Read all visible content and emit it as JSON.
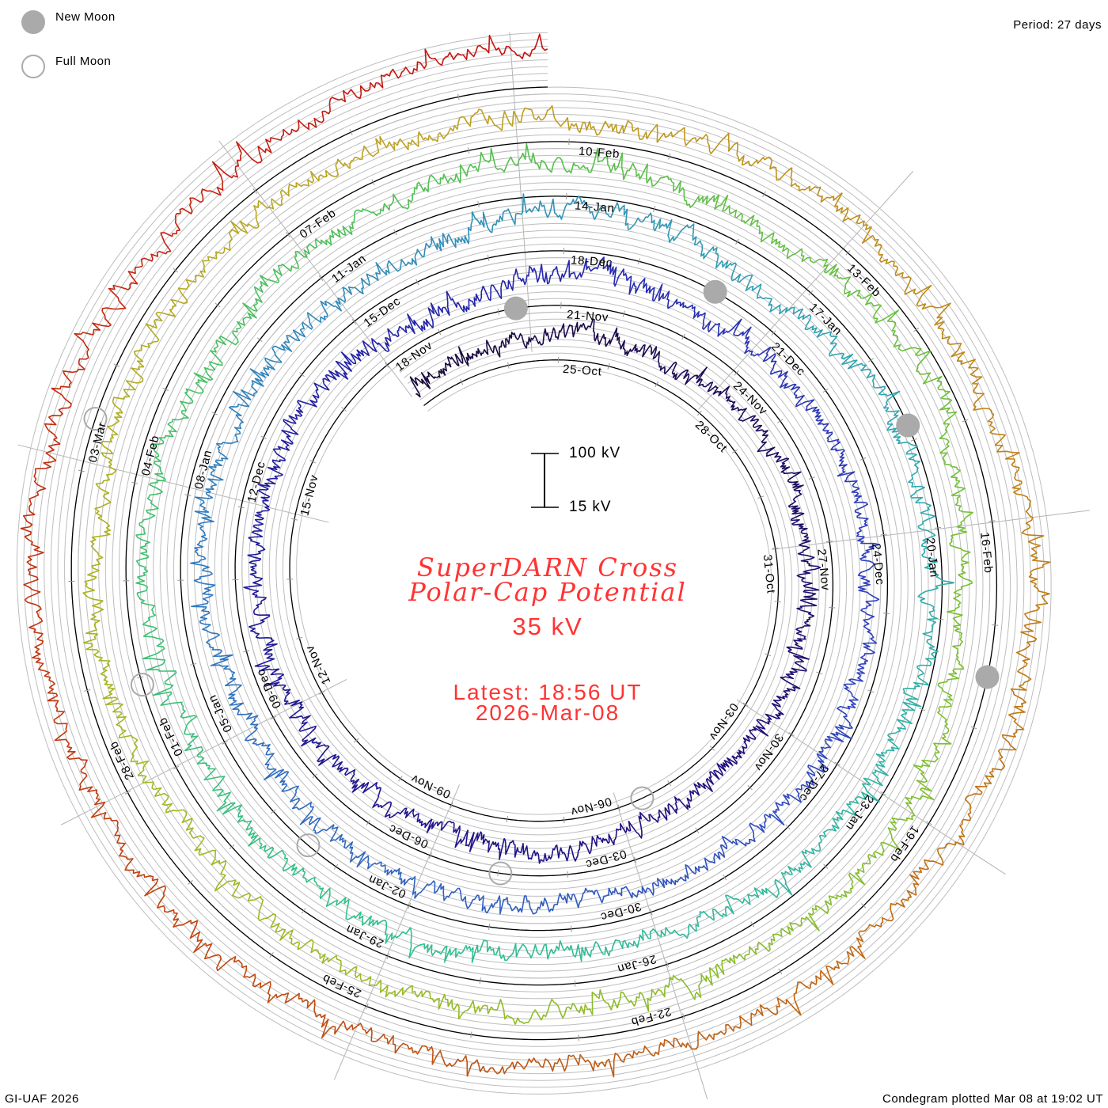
{
  "legend": {
    "new_moon": "New Moon",
    "full_moon": "Full Moon",
    "moon_color": "#aaaaaa"
  },
  "header": {
    "period": "Period: 27 days"
  },
  "footer": {
    "credit": "GI-UAF 2026",
    "plotted": "Condegram plotted Mar 08 at 19:02 UT"
  },
  "center": {
    "title_line1": "SuperDARN Cross",
    "title_line2": "Polar-Cap Potential",
    "current_value": "35 kV",
    "latest_time": "Latest: 18:56 UT",
    "latest_date": "2026-Mar-08",
    "text_color": "#ff3333"
  },
  "scale": {
    "top_label": "100 kV",
    "bottom_label": "15 kV",
    "top_kv": 100,
    "bottom_kv": 15
  },
  "chart_data": {
    "type": "line",
    "subtype": "spiral-condegram",
    "title": "SuperDARN Cross Polar-Cap Potential",
    "period_days": 27,
    "units": "kV",
    "baseline_kv": 15,
    "start": "2025-10-22T02:24Z",
    "end": "2026-03-08T18:56Z",
    "daily_first_date": "2025-10-22",
    "daily_values_kv": [
      40,
      45,
      55,
      65,
      55,
      48,
      62,
      66,
      64,
      65,
      60,
      58,
      52,
      52,
      48,
      60,
      66,
      54,
      58,
      60,
      65,
      66,
      70,
      70,
      70,
      66,
      62,
      42,
      40,
      58,
      77,
      60,
      58,
      60,
      70,
      72,
      70,
      76,
      77,
      74,
      65,
      70,
      52,
      58,
      64,
      65,
      60,
      58,
      52,
      64,
      65,
      66,
      64,
      60,
      58,
      52,
      77,
      84,
      72,
      52,
      65,
      84,
      84,
      82,
      84,
      80,
      72,
      70,
      58,
      52,
      46,
      64,
      58,
      58,
      58,
      58,
      65,
      71,
      71,
      52,
      58,
      58,
      58,
      71,
      71,
      52,
      46,
      65,
      82,
      52,
      52,
      46,
      58,
      58,
      58,
      52,
      52,
      58,
      58,
      58,
      52,
      52,
      64,
      71,
      52,
      71,
      70,
      65,
      64,
      52,
      58,
      40,
      58,
      64,
      52,
      52,
      58,
      77,
      71,
      64,
      52,
      58,
      58,
      58,
      58,
      58,
      58,
      64,
      64,
      71,
      77,
      77,
      71,
      64,
      58,
      58,
      71,
      77
    ],
    "date_labels_first": "2025-10-25",
    "date_label_step_days": 3,
    "date_labels": [
      "25-Oct",
      "28-Oct",
      "31-Oct",
      "03-Nov",
      "06-Nov",
      "09-Nov",
      "12-Nov",
      "15-Nov",
      "18-Nov",
      "21-Nov",
      "24-Nov",
      "27-Nov",
      "30-Nov",
      "03-Dec",
      "06-Dec",
      "09-Dec",
      "12-Dec",
      "15-Dec",
      "18-Dec",
      "21-Dec",
      "24-Dec",
      "27-Dec",
      "30-Dec",
      "02-Jan",
      "05-Jan",
      "08-Jan",
      "11-Jan",
      "14-Jan",
      "17-Jan",
      "20-Jan",
      "23-Jan",
      "26-Jan",
      "29-Jan",
      "01-Feb",
      "04-Feb",
      "07-Feb",
      "10-Feb",
      "13-Feb",
      "16-Feb",
      "19-Feb",
      "22-Feb",
      "25-Feb",
      "28-Feb",
      "03-Mar"
    ],
    "new_moons": [
      "2025-11-20T06:47Z",
      "2025-12-20T01:43Z",
      "2026-01-18T19:52Z",
      "2026-02-17T12:01Z"
    ],
    "full_moons": [
      "2025-11-05T13:19Z",
      "2025-12-04T23:14Z",
      "2026-01-03T10:03Z",
      "2026-02-01T22:09Z",
      "2026-03-03T11:38Z"
    ],
    "color_stops": [
      [
        0.0,
        "#1a0a3a"
      ],
      [
        0.1,
        "#200f80"
      ],
      [
        0.2,
        "#2222a8"
      ],
      [
        0.27,
        "#3040c0"
      ],
      [
        0.36,
        "#3078c0"
      ],
      [
        0.45,
        "#30a8b0"
      ],
      [
        0.52,
        "#30c090"
      ],
      [
        0.6,
        "#50c050"
      ],
      [
        0.66,
        "#78c030"
      ],
      [
        0.74,
        "#a4b820"
      ],
      [
        0.8,
        "#c0a020"
      ],
      [
        0.86,
        "#c07814"
      ],
      [
        0.92,
        "#c04a10"
      ],
      [
        1.0,
        "#c81010"
      ]
    ]
  }
}
